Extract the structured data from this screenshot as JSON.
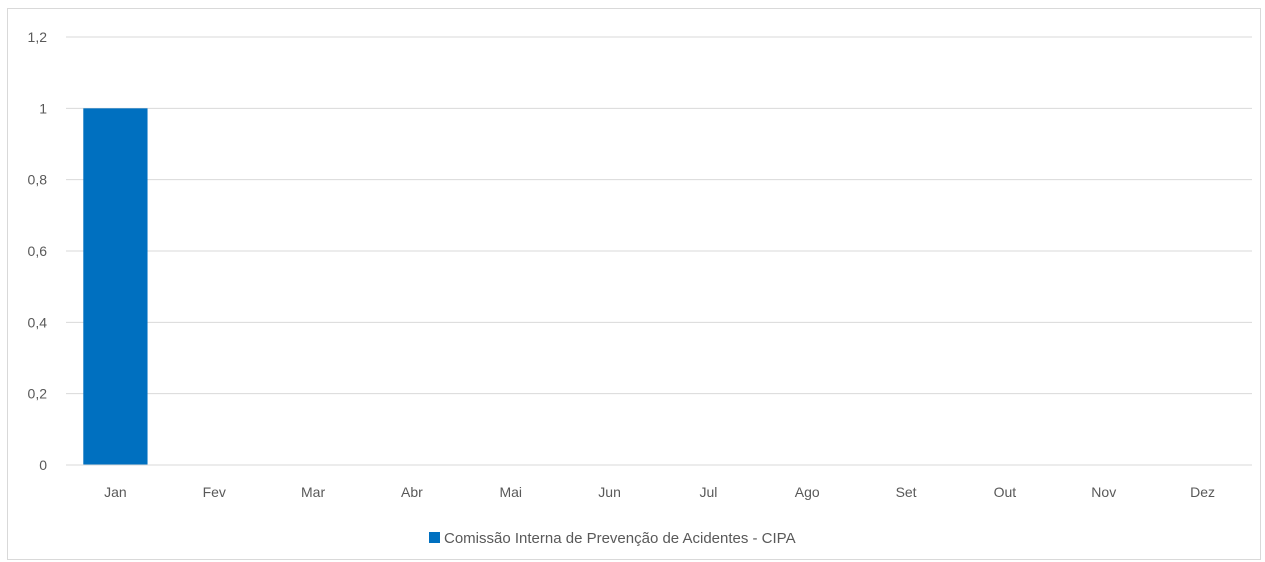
{
  "chart_data": {
    "type": "bar",
    "title": "",
    "xlabel": "",
    "ylabel": "",
    "categories": [
      "Jan",
      "Fev",
      "Mar",
      "Abr",
      "Mai",
      "Jun",
      "Jul",
      "Ago",
      "Set",
      "Out",
      "Nov",
      "Dez"
    ],
    "series": [
      {
        "name": "Comissão Interna de Prevenção de Acidentes - CIPA",
        "values": [
          1,
          0,
          0,
          0,
          0,
          0,
          0,
          0,
          0,
          0,
          0,
          0
        ],
        "color": "#0070C0"
      }
    ],
    "ylim": [
      0,
      1.2
    ],
    "yticks": [
      0,
      0.2,
      0.4,
      0.6,
      0.8,
      1,
      1.2
    ],
    "ytick_labels": [
      "0",
      "0,2",
      "0,4",
      "0,6",
      "0,8",
      "1",
      "1,2"
    ],
    "grid": true,
    "gridline_color": "#d9d9d9",
    "legend": {
      "position": "bottom",
      "entries": [
        "Comissão Interna de Prevenção de Acidentes - CIPA"
      ]
    }
  }
}
